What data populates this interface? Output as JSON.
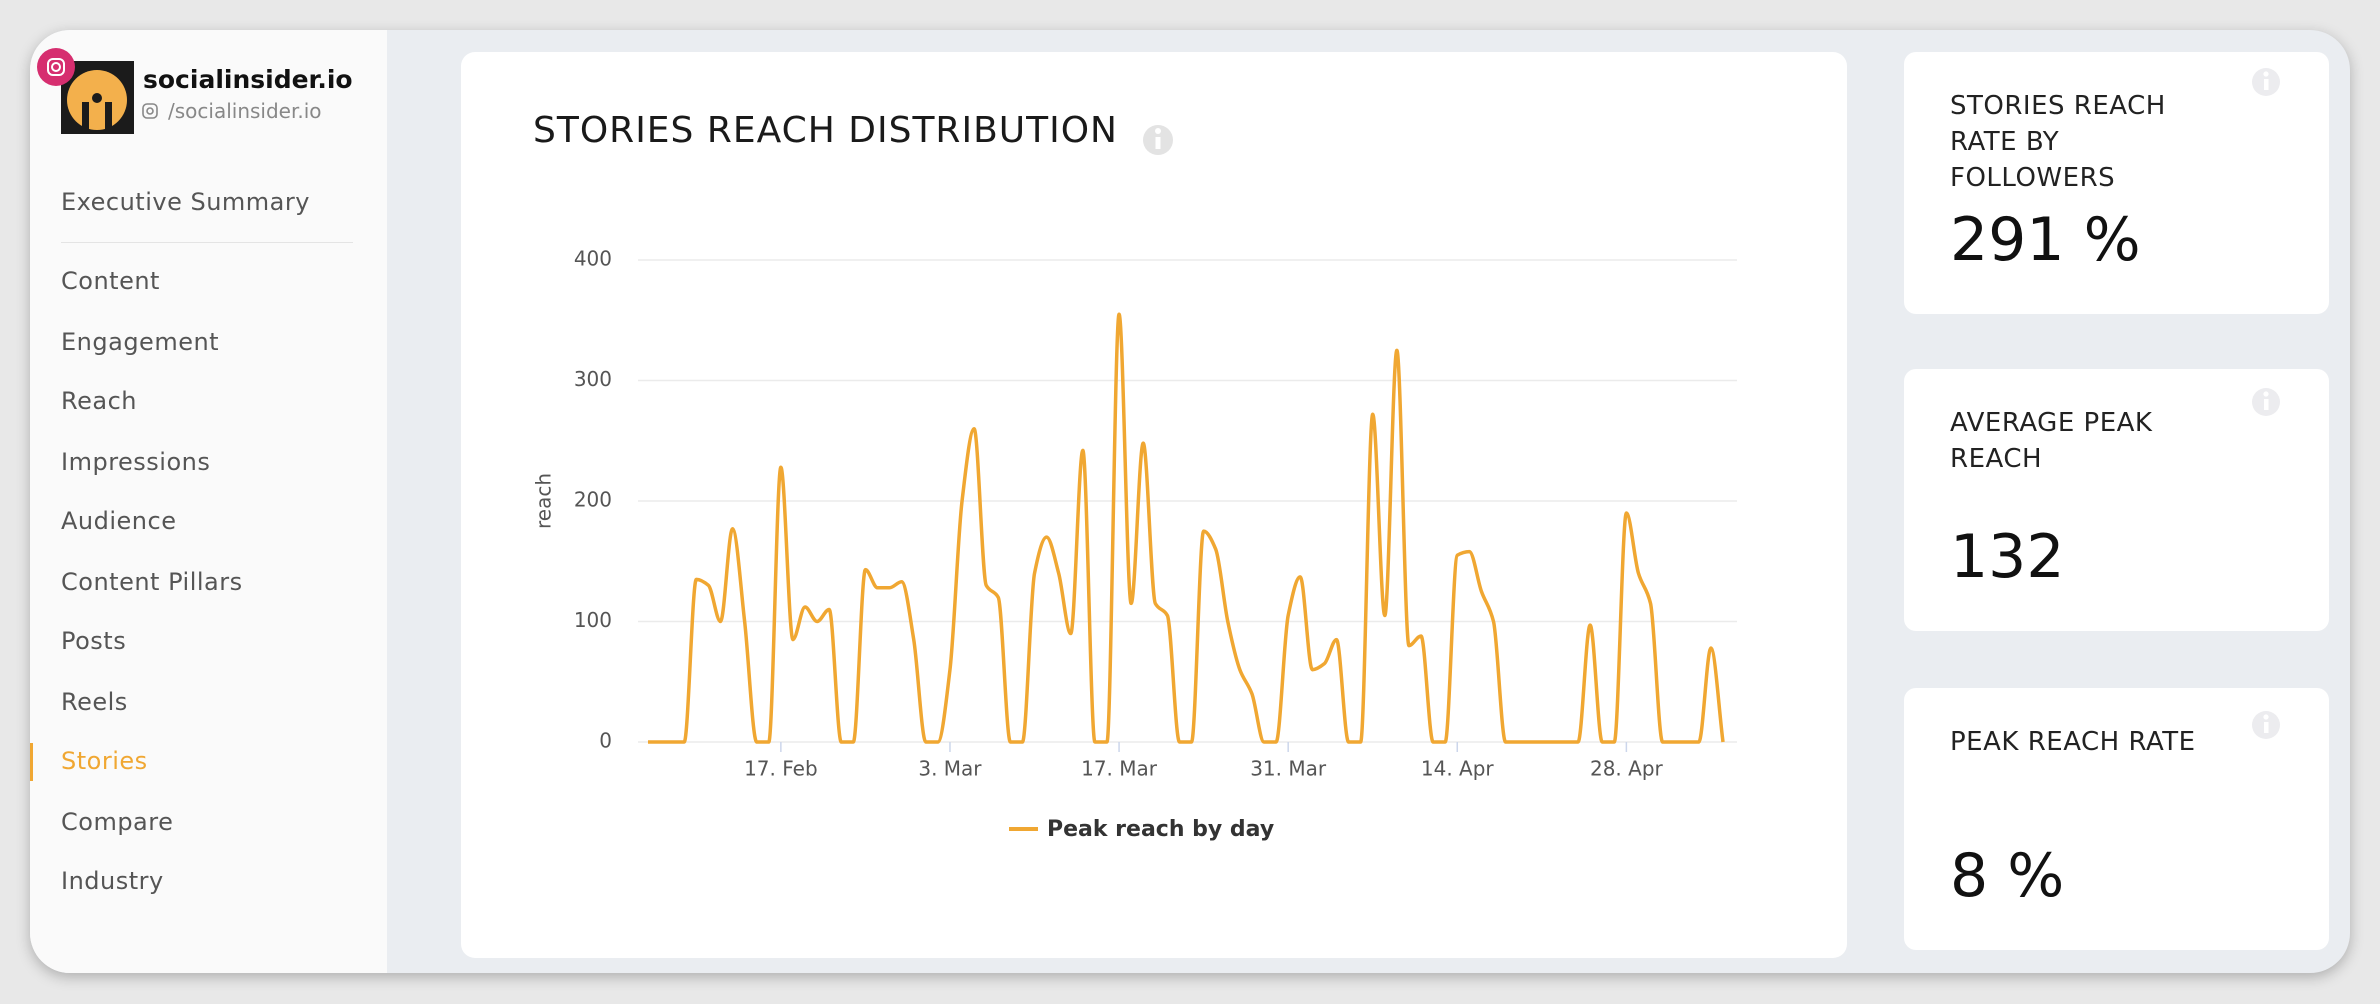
{
  "sidebar": {
    "account_name": "socialinsider.io",
    "account_handle": "/socialinsider.io",
    "nav": [
      "Executive Summary",
      "Content",
      "Engagement",
      "Reach",
      "Impressions",
      "Audience",
      "Content Pillars",
      "Posts",
      "Reels",
      "Stories",
      "Compare",
      "Industry"
    ],
    "active_index": 9
  },
  "chart_data": {
    "type": "line",
    "title": "STORIES REACH DISTRIBUTION",
    "y_label": "reach",
    "x": [
      "6. Feb",
      "7. Feb",
      "8. Feb",
      "9. Feb",
      "10. Feb",
      "11. Feb",
      "12. Feb",
      "13. Feb",
      "14. Feb",
      "15. Feb",
      "16. Feb",
      "17. Feb",
      "18. Feb",
      "19. Feb",
      "20. Feb",
      "21. Feb",
      "22. Feb",
      "23. Feb",
      "24. Feb",
      "25. Feb",
      "26. Feb",
      "27. Feb",
      "28. Feb",
      "1. Mar",
      "2. Mar",
      "3. Mar",
      "4. Mar",
      "5. Mar",
      "6. Mar",
      "7. Mar",
      "8. Mar",
      "9. Mar",
      "10. Mar",
      "11. Mar",
      "12. Mar",
      "13. Mar",
      "14. Mar",
      "15. Mar",
      "16. Mar",
      "17. Mar",
      "18. Mar",
      "19. Mar",
      "20. Mar",
      "21. Mar",
      "22. Mar",
      "23. Mar",
      "24. Mar",
      "25. Mar",
      "26. Mar",
      "27. Mar",
      "28. Mar",
      "29. Mar",
      "30. Mar",
      "31. Mar",
      "1. Apr",
      "2. Apr",
      "3. Apr",
      "4. Apr",
      "5. Apr",
      "6. Apr",
      "7. Apr",
      "8. Apr",
      "9. Apr",
      "10. Apr",
      "11. Apr",
      "12. Apr",
      "13. Apr",
      "14. Apr",
      "15. Apr",
      "16. Apr",
      "17. Apr",
      "18. Apr",
      "19. Apr",
      "20. Apr",
      "21. Apr",
      "22. Apr",
      "23. Apr",
      "24. Apr",
      "25. Apr",
      "26. Apr",
      "27. Apr",
      "28. Apr",
      "29. Apr",
      "30. Apr",
      "1. May",
      "2. May",
      "3. May",
      "4. May",
      "5. May",
      "6. May"
    ],
    "series": [
      {
        "name": "Peak reach by day",
        "color": "#f0a732",
        "values": [
          0,
          0,
          0,
          0,
          135,
          130,
          100,
          177,
          100,
          0,
          0,
          228,
          85,
          112,
          100,
          110,
          0,
          0,
          143,
          128,
          128,
          133,
          85,
          0,
          0,
          60,
          200,
          260,
          130,
          120,
          0,
          0,
          140,
          170,
          140,
          90,
          242,
          0,
          0,
          355,
          115,
          248,
          115,
          105,
          0,
          0,
          175,
          160,
          100,
          60,
          40,
          0,
          0,
          105,
          137,
          60,
          65,
          85,
          0,
          0,
          272,
          105,
          325,
          80,
          88,
          0,
          0,
          155,
          158,
          125,
          100,
          0,
          0,
          0,
          0,
          0,
          0,
          0,
          97,
          0,
          0,
          190,
          140,
          115,
          0,
          0,
          0,
          0,
          78,
          0
        ]
      }
    ],
    "xticks": [
      "17. Feb",
      "3. Mar",
      "17. Mar",
      "31. Mar",
      "14. Apr",
      "28. Apr"
    ],
    "ylim": [
      0,
      400
    ],
    "yticks": [
      0,
      100,
      200,
      300,
      400
    ],
    "grid": true
  },
  "cards": [
    {
      "title": "STORIES REACH RATE BY FOLLOWERS",
      "value": "291 %"
    },
    {
      "title": "AVERAGE PEAK REACH",
      "value": "132"
    },
    {
      "title": "PEAK REACH RATE",
      "value": "8 %"
    }
  ]
}
